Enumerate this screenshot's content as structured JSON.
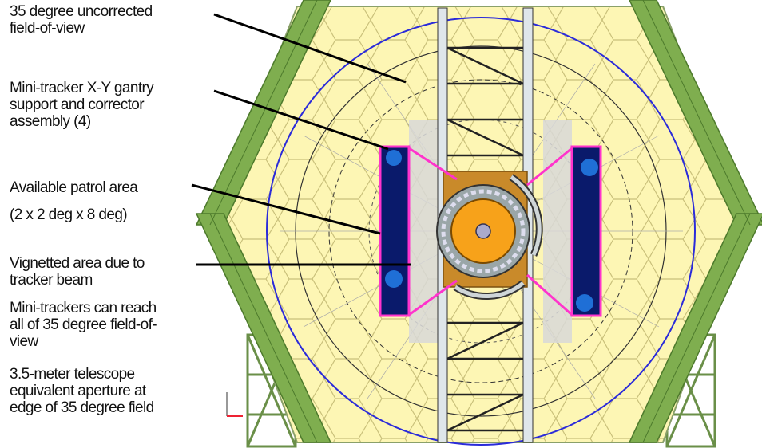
{
  "callouts": [
    {
      "id": "fov",
      "lines": [
        "35 degree uncorrected",
        "field-of-view"
      ]
    },
    {
      "id": "gantry",
      "lines": [
        "Mini-tracker X-Y gantry",
        "support and corrector",
        "assembly (4)"
      ]
    },
    {
      "id": "patrol",
      "lines": [
        "Available patrol area",
        "(2 x 2 deg x 8 deg)"
      ]
    },
    {
      "id": "vignette",
      "lines": [
        "Vignetted area due to",
        "tracker beam"
      ]
    },
    {
      "id": "reach",
      "lines": [
        "Mini-trackers can reach",
        "all of 35 degree field-of-",
        "view"
      ]
    },
    {
      "id": "aperture",
      "lines": [
        "3.5-meter telescope",
        "equivalent aperture at",
        "edge of 35 degree field"
      ]
    }
  ],
  "colors": {
    "truss": "#7fae4f",
    "truss_dark": "#4d7a2c",
    "mirror_fill": "#fdf6b4",
    "mirror_edge": "#c9c07a",
    "fov_circle": "#2b2bd9",
    "patrol_fill": "#0a1a6b",
    "patrol_edge": "#ff33cc",
    "tracker_disk": "#f7a21a",
    "vignette": "#d8d8d8"
  }
}
